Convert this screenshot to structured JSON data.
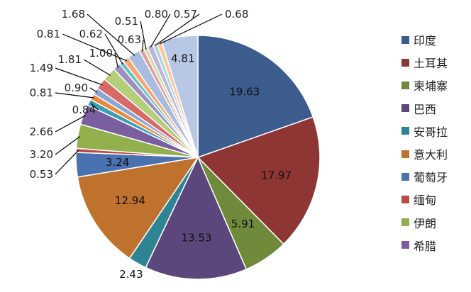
{
  "chart_data": {
    "type": "pie",
    "title": "",
    "slices": [
      {
        "name": "印度",
        "value": 19.63,
        "color": "#3C5C8E"
      },
      {
        "name": "土耳其",
        "value": 17.97,
        "color": "#8E3634"
      },
      {
        "name": "柬埔寨",
        "value": 5.91,
        "color": "#6E8A3A"
      },
      {
        "name": "巴西",
        "value": 13.53,
        "color": "#5C477C"
      },
      {
        "name": "安哥拉",
        "value": 2.43,
        "color": "#2F8494"
      },
      {
        "name": "意大利",
        "value": 12.94,
        "color": "#BF722D"
      },
      {
        "name": "葡萄牙",
        "value": 3.24,
        "color": "#4A72B0"
      },
      {
        "name": "缅甸",
        "value": 0.53,
        "color": "#B84A48"
      },
      {
        "name": "伊朗",
        "value": 3.2,
        "color": "#92B04E"
      },
      {
        "name": "希腊",
        "value": 2.66,
        "color": "#7A5EA0"
      },
      {
        "name": "",
        "value": 0.84,
        "color": "#3CA0B4"
      },
      {
        "name": "",
        "value": 0.81,
        "color": "#E88A3C"
      },
      {
        "name": "",
        "value": 0.9,
        "color": "#8BA8D4"
      },
      {
        "name": "",
        "value": 1.49,
        "color": "#D66A66"
      },
      {
        "name": "",
        "value": 1.81,
        "color": "#B4CE7A"
      },
      {
        "name": "",
        "value": 1.0,
        "color": "#A090C0"
      },
      {
        "name": "",
        "value": 0.62,
        "color": "#6CC0D0"
      },
      {
        "name": "",
        "value": 0.81,
        "color": "#F4A870"
      },
      {
        "name": "",
        "value": 1.68,
        "color": "#A8BCE0"
      },
      {
        "name": "",
        "value": 0.63,
        "color": "#E0A0A0"
      },
      {
        "name": "",
        "value": 0.51,
        "color": "#C8DCA8"
      },
      {
        "name": "",
        "value": 0.8,
        "color": "#C0B4D8"
      },
      {
        "name": "",
        "value": 0.57,
        "color": "#A8D8E0"
      },
      {
        "name": "",
        "value": 0.68,
        "color": "#F8C8A0"
      },
      {
        "name": "",
        "value": 4.81,
        "color": "#B8C8E4"
      }
    ],
    "legend": {
      "placement": "right",
      "entries": [
        "印度",
        "土耳其",
        "柬埔寨",
        "巴西",
        "安哥拉",
        "意大利",
        "葡萄牙",
        "缅甸",
        "伊朗",
        "希腊"
      ]
    },
    "data_labels": "values"
  }
}
